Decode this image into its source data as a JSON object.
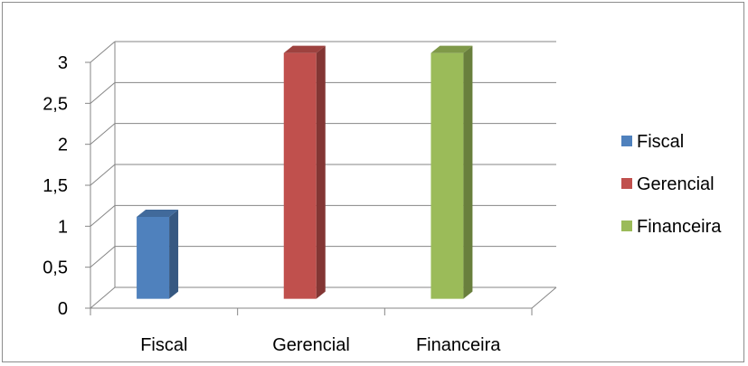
{
  "chart_data": {
    "type": "bar",
    "title": "",
    "xlabel": "",
    "ylabel": "",
    "categories": [
      "Fiscal",
      "Gerencial",
      "Financeira"
    ],
    "series": [
      {
        "name": "Fiscal",
        "values": [
          1,
          null,
          null
        ],
        "color": "#4f81bd"
      },
      {
        "name": "Gerencial",
        "values": [
          null,
          3,
          null
        ],
        "color": "#c0504d"
      },
      {
        "name": "Financeira",
        "values": [
          null,
          null,
          3
        ],
        "color": "#9bbb59"
      }
    ],
    "ylim": [
      0,
      3
    ],
    "yticks": [
      "0",
      "0,5",
      "1",
      "1,5",
      "2",
      "2,5",
      "3"
    ],
    "grid": true,
    "style": "3d-column",
    "legend": {
      "position": "right",
      "entries": [
        "Fiscal",
        "Gerencial",
        "Financeira"
      ]
    }
  }
}
